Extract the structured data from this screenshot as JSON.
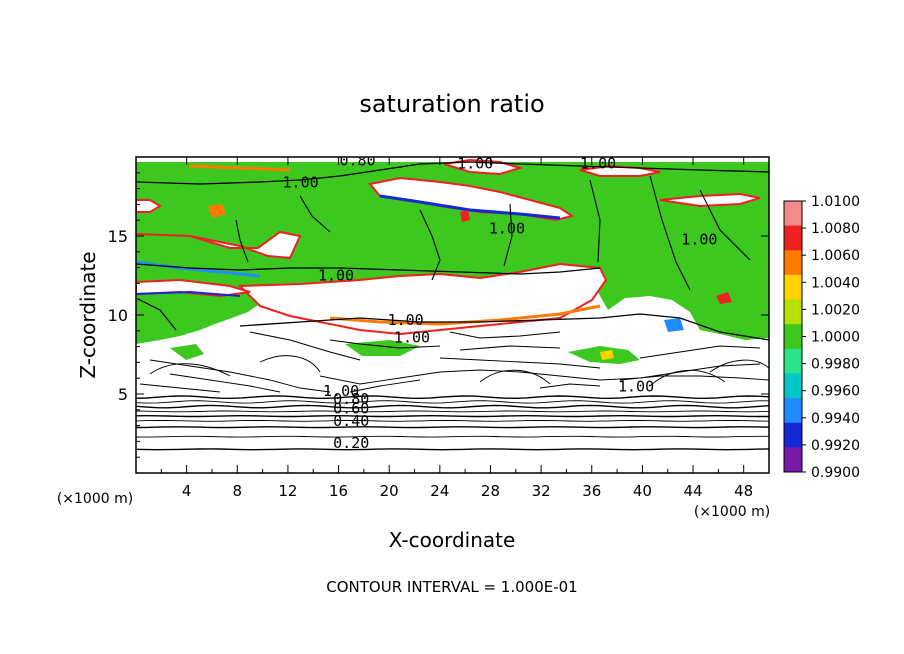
{
  "chart_data": {
    "type": "heatmap",
    "title": "saturation ratio",
    "xlabel": "X-coordinate",
    "ylabel": "Z-coordinate",
    "x_unit": "(×1000 m)",
    "z_unit": "(×1000 m)",
    "xlim": [
      0,
      50
    ],
    "ylim": [
      0,
      20
    ],
    "x_ticks": [
      "4",
      "8",
      "12",
      "16",
      "20",
      "24",
      "28",
      "32",
      "36",
      "40",
      "44",
      "48"
    ],
    "y_ticks": [
      "5",
      "10",
      "15"
    ],
    "footer": "CONTOUR INTERVAL = 1.000E-01",
    "colorbar": {
      "labels": [
        "1.0100",
        "1.0080",
        "1.0060",
        "1.0040",
        "1.0020",
        "1.0000",
        "0.9980",
        "0.9960",
        "0.9940",
        "0.9920",
        "0.9900"
      ],
      "colors": [
        "#f28a8a",
        "#ee2020",
        "#ff7a00",
        "#ffd200",
        "#b8e000",
        "#3cc81e",
        "#2ae38a",
        "#00c8c8",
        "#1e8cff",
        "#1428d8",
        "#7a1aa8"
      ]
    },
    "contour_labels": [
      {
        "text": "1.00",
        "x": 13.0,
        "z": 18.2
      },
      {
        "text": "0.80",
        "x": 17.5,
        "z": 19.6
      },
      {
        "text": "1.00",
        "x": 26.8,
        "z": 19.4
      },
      {
        "text": "1.00",
        "x": 36.5,
        "z": 19.4
      },
      {
        "text": "1.00",
        "x": 29.3,
        "z": 15.3
      },
      {
        "text": "1.00",
        "x": 44.5,
        "z": 14.6
      },
      {
        "text": "1.00",
        "x": 15.8,
        "z": 12.3
      },
      {
        "text": "1.00",
        "x": 21.3,
        "z": 9.5
      },
      {
        "text": "1.00",
        "x": 21.8,
        "z": 8.4
      },
      {
        "text": "1.00",
        "x": 39.5,
        "z": 5.3
      },
      {
        "text": "1.00",
        "x": 16.2,
        "z": 5.0
      },
      {
        "text": "0.80",
        "x": 17.0,
        "z": 4.5
      },
      {
        "text": "0.60",
        "x": 17.0,
        "z": 3.9
      },
      {
        "text": "0.40",
        "x": 17.0,
        "z": 3.1
      },
      {
        "text": "0.20",
        "x": 17.0,
        "z": 1.7
      }
    ],
    "lower_contour_levels": [
      0.2,
      0.3,
      0.4,
      0.5,
      0.6,
      0.7,
      0.8,
      0.9,
      1.0
    ],
    "lower_contour_heights": [
      1.5,
      2.3,
      2.9,
      3.3,
      3.6,
      3.9,
      4.2,
      4.5,
      4.8
    ]
  }
}
